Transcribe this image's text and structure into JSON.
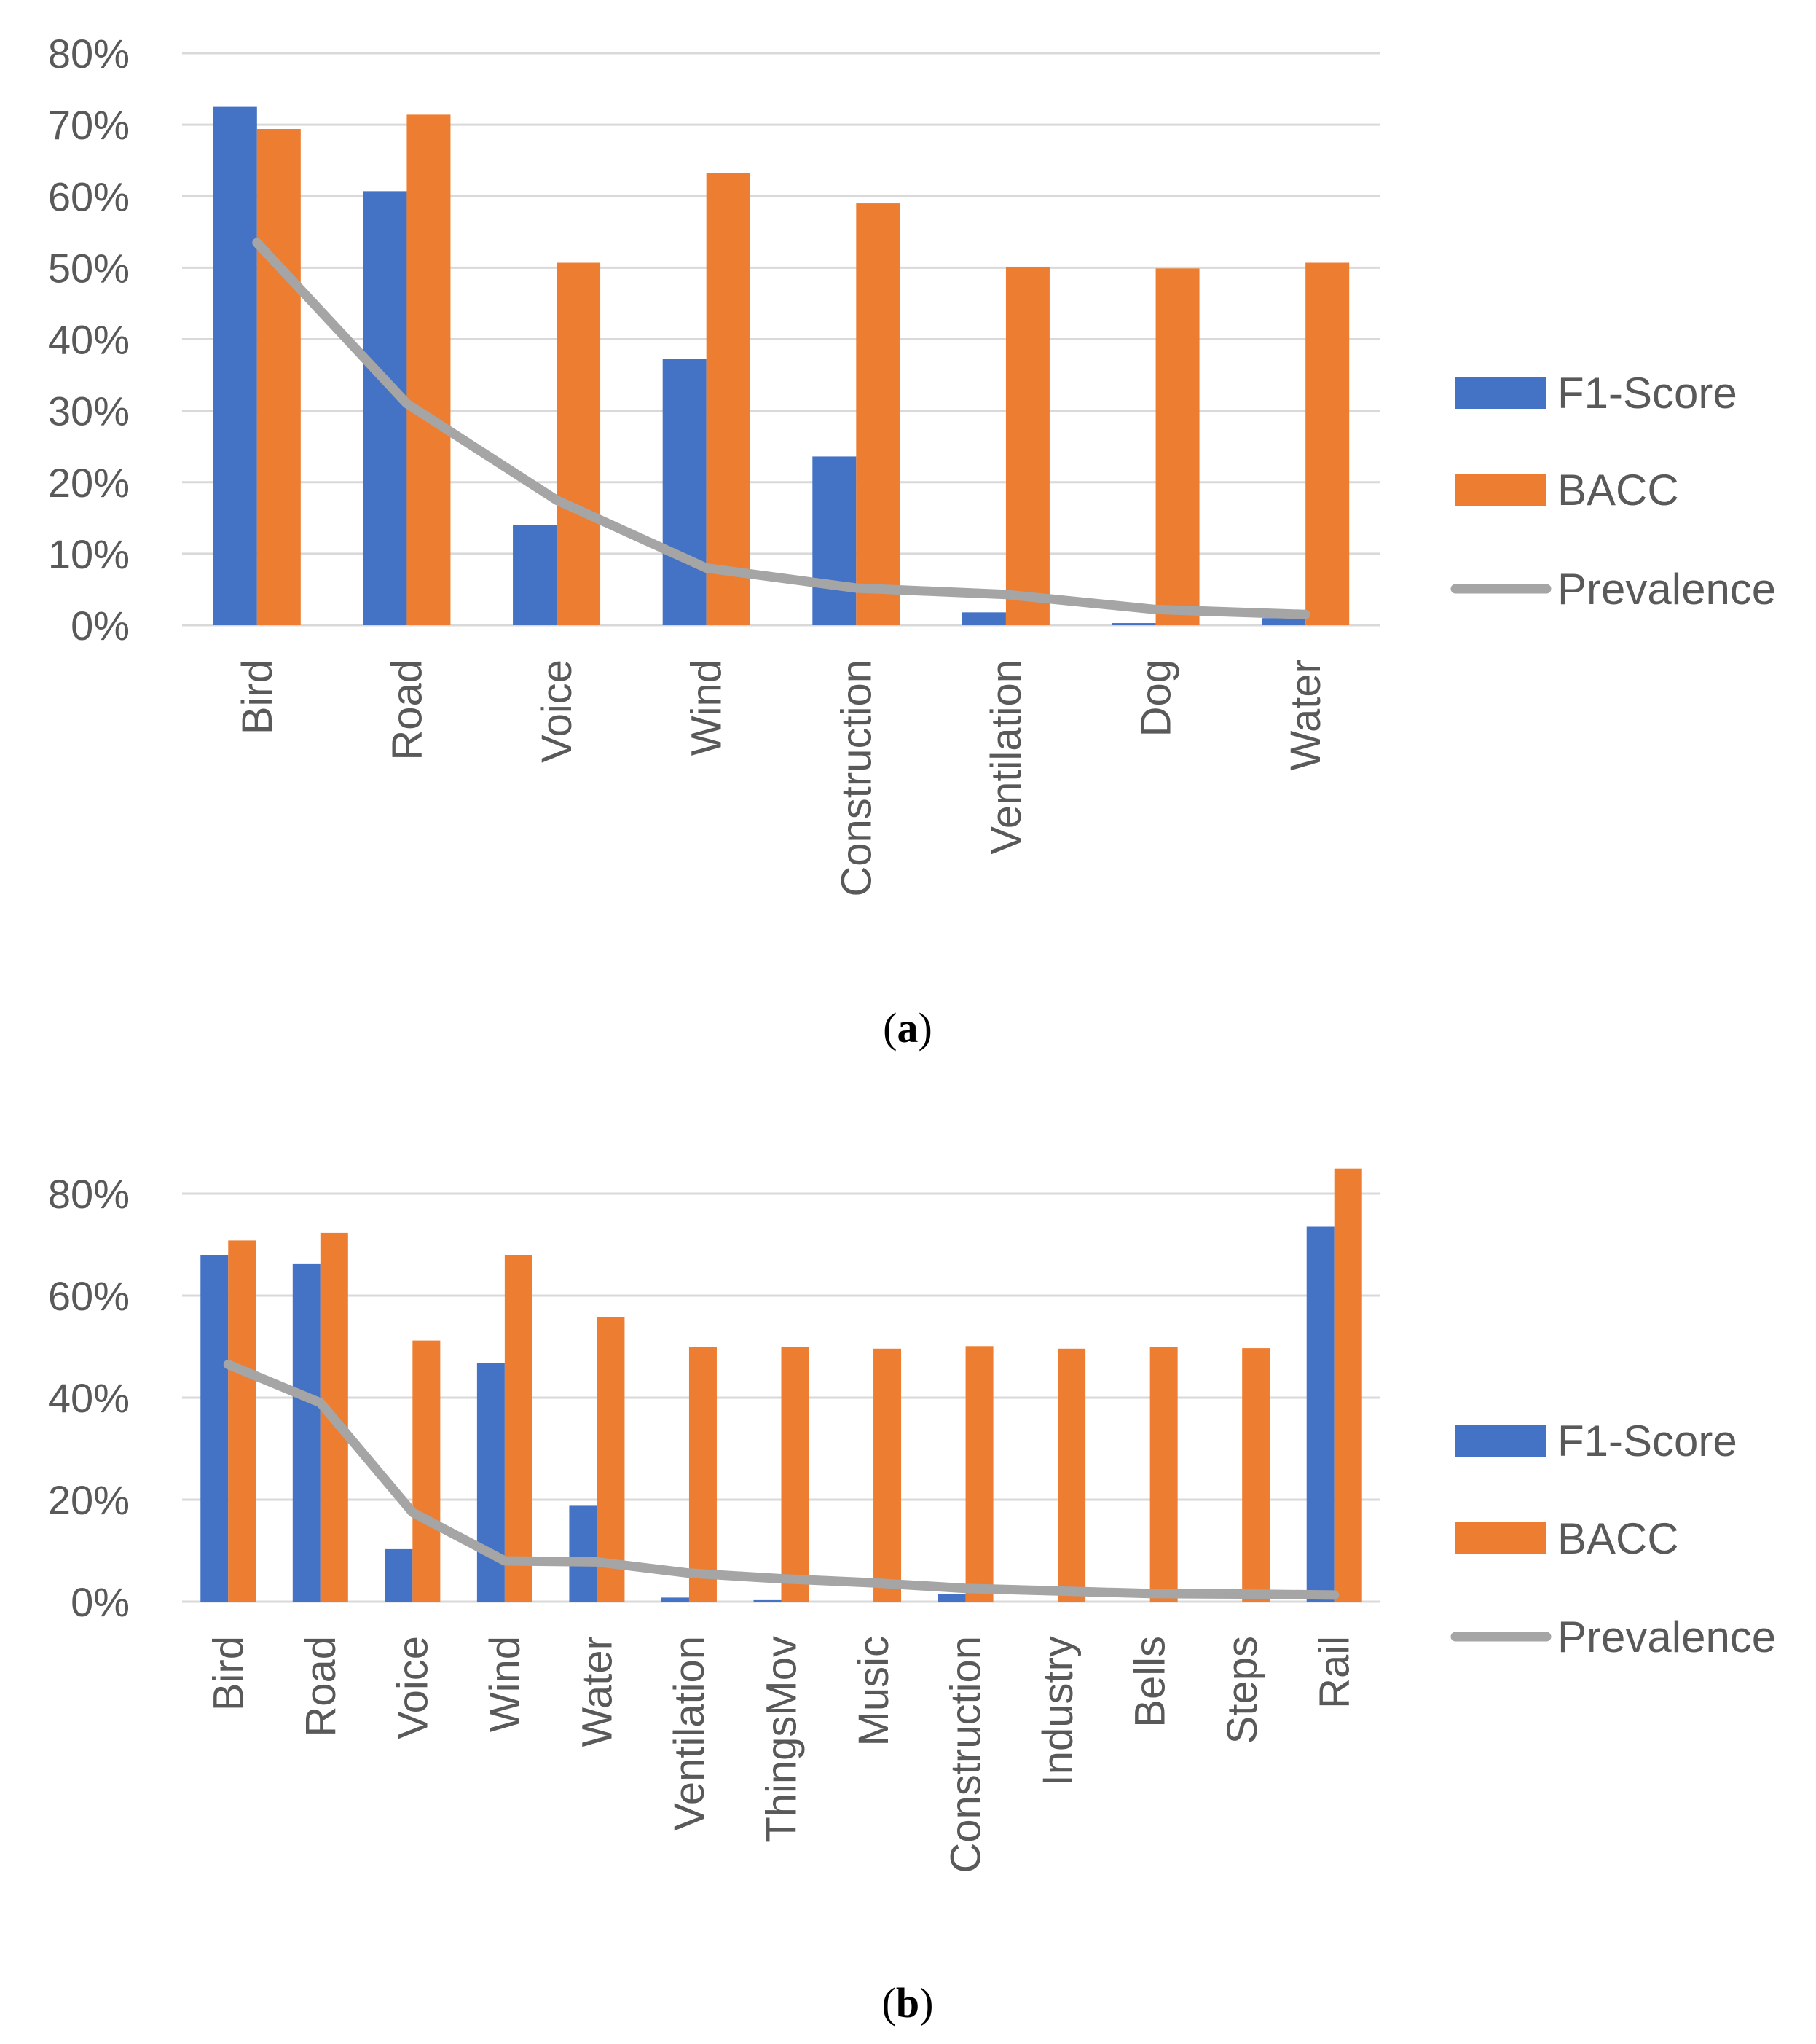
{
  "chart_data": [
    {
      "type": "bar",
      "caption_letter": "a",
      "categories": [
        "Bird",
        "Road",
        "Voice",
        "Wind",
        "Construction",
        "Ventilation",
        "Dog",
        "Water"
      ],
      "series": [
        {
          "name": "F1-Score",
          "kind": "bar",
          "color": "#4472C4",
          "values": [
            72.5,
            60.7,
            14.0,
            37.2,
            23.6,
            1.8,
            0.3,
            1.0
          ]
        },
        {
          "name": "BACC",
          "kind": "bar",
          "color": "#ED7D31",
          "values": [
            69.4,
            71.4,
            50.7,
            63.2,
            59.0,
            50.1,
            49.9,
            50.7
          ]
        },
        {
          "name": "Prevalence",
          "kind": "line",
          "color": "#A5A5A5",
          "values": [
            53.5,
            31.0,
            17.5,
            8.0,
            5.2,
            4.3,
            2.2,
            1.5
          ]
        }
      ],
      "y_ticks": [
        "0%",
        "10%",
        "20%",
        "30%",
        "40%",
        "50%",
        "60%",
        "70%",
        "80%"
      ],
      "ylim": [
        0,
        80
      ],
      "grid": true,
      "legend": "right"
    },
    {
      "type": "bar",
      "caption_letter": "b",
      "categories": [
        "Bird",
        "Road",
        "Voice",
        "Wind",
        "Water",
        "Ventilation",
        "ThingsMov",
        "Music",
        "Construction",
        "Industry",
        "Bells",
        "Steps",
        "Rail"
      ],
      "series": [
        {
          "name": "F1-Score",
          "kind": "bar",
          "color": "#4472C4",
          "values": [
            68.0,
            66.3,
            10.3,
            46.8,
            18.8,
            0.8,
            0.3,
            0.0,
            1.5,
            0.0,
            0.0,
            0.0,
            73.5
          ]
        },
        {
          "name": "BACC",
          "kind": "bar",
          "color": "#ED7D31",
          "values": [
            70.8,
            72.3,
            51.2,
            68.0,
            55.8,
            50.0,
            50.0,
            49.6,
            50.1,
            49.6,
            50.0,
            49.7,
            84.9
          ]
        },
        {
          "name": "Prevalence",
          "kind": "line",
          "color": "#A5A5A5",
          "values": [
            46.5,
            39.0,
            17.5,
            8.0,
            7.8,
            5.6,
            4.5,
            3.7,
            2.6,
            2.1,
            1.6,
            1.5,
            1.3
          ]
        }
      ],
      "y_ticks": [
        "0%",
        "20%",
        "40%",
        "60%",
        "80%"
      ],
      "ylim": [
        0,
        80
      ],
      "grid": true,
      "legend": "right"
    }
  ]
}
